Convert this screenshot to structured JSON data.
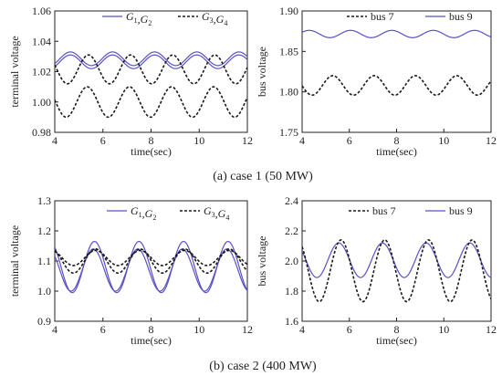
{
  "colors": {
    "blue": "#5a52c6",
    "black": "#1a1a1a"
  },
  "captions": [
    "(a) case 1 (50 MW)",
    "(b) case 2 (400 MW)"
  ],
  "chart_data": [
    {
      "type": "line",
      "panel": "a-left",
      "ylabel": "terminal voltage",
      "xlabel": "time(sec)",
      "xlim": [
        4,
        12
      ],
      "ylim": [
        0.98,
        1.06
      ],
      "xticks": [
        "4",
        "6",
        "8",
        "10",
        "12"
      ],
      "yticks": [
        "0.98",
        "1.00",
        "1.02",
        "1.04",
        "1.06"
      ],
      "legend": [
        {
          "base": "G",
          "subs": [
            "1",
            "2"
          ],
          "style": "solid",
          "color": "#5a52c6"
        },
        {
          "base": "G",
          "subs": [
            "3",
            "4"
          ],
          "style": "dashed",
          "color": "#1a1a1a"
        }
      ],
      "series": [
        {
          "style": "solid",
          "color": "#5a52c6",
          "mean": 1.0285,
          "amp": 0.0045,
          "period": 1.75,
          "phase_x": 4.65
        },
        {
          "style": "solid",
          "color": "#5a52c6",
          "mean": 1.0265,
          "amp": 0.0045,
          "period": 1.75,
          "phase_x": 4.65
        },
        {
          "style": "dashed",
          "color": "#1a1a1a",
          "mean": 1.0215,
          "amp": 0.0095,
          "period": 1.75,
          "phase_x": 5.4
        },
        {
          "style": "dashed",
          "color": "#1a1a1a",
          "mean": 1.0,
          "amp": 0.01,
          "period": 1.75,
          "phase_x": 5.35
        }
      ]
    },
    {
      "type": "line",
      "panel": "a-right",
      "ylabel": "bus voltage",
      "xlabel": "time(sec)",
      "xlim": [
        4,
        12
      ],
      "ylim": [
        1.75,
        1.9
      ],
      "xticks": [
        "4",
        "6",
        "8",
        "10",
        "12"
      ],
      "yticks": [
        "1.75",
        "1.80",
        "1.85",
        "1.90"
      ],
      "legend": [
        {
          "text": "bus 7",
          "style": "dashed",
          "color": "#1a1a1a"
        },
        {
          "text": "bus 9",
          "style": "solid",
          "color": "#5a52c6"
        }
      ],
      "series": [
        {
          "style": "solid",
          "color": "#5a52c6",
          "mean": 1.8715,
          "amp": 0.0045,
          "period": 1.75,
          "phase_x": 4.3
        },
        {
          "style": "dashed",
          "color": "#1a1a1a",
          "mean": 1.808,
          "amp": 0.012,
          "period": 1.75,
          "phase_x": 5.3
        }
      ]
    },
    {
      "type": "line",
      "panel": "b-left",
      "ylabel": "terminal voltage",
      "xlabel": "time(sec)",
      "xlim": [
        4,
        12
      ],
      "ylim": [
        0.9,
        1.3
      ],
      "xticks": [
        "4",
        "6",
        "8",
        "10",
        "12"
      ],
      "yticks": [
        "0.9",
        "1.0",
        "1.1",
        "1.2",
        "1.3"
      ],
      "legend": [
        {
          "base": "G",
          "subs": [
            "1",
            "2"
          ],
          "style": "solid",
          "color": "#5a52c6"
        },
        {
          "base": "G",
          "subs": [
            "3",
            "4"
          ],
          "style": "dashed",
          "color": "#1a1a1a"
        }
      ],
      "series": [
        {
          "style": "solid",
          "color": "#5a52c6",
          "mean": 1.08,
          "amp": 0.085,
          "period": 1.85,
          "phase_x": 5.65
        },
        {
          "style": "solid",
          "color": "#5a52c6",
          "mean": 1.07,
          "amp": 0.07,
          "period": 1.85,
          "phase_x": 5.6
        },
        {
          "style": "dashed",
          "color": "#1a1a1a",
          "mean": 1.1,
          "amp": 0.04,
          "period": 1.85,
          "phase_x": 5.7
        },
        {
          "style": "dashed",
          "color": "#1a1a1a",
          "mean": 1.11,
          "amp": 0.025,
          "period": 1.85,
          "phase_x": 5.7
        }
      ]
    },
    {
      "type": "line",
      "panel": "b-right",
      "ylabel": "bus voltage",
      "xlabel": "time(sec)",
      "xlim": [
        4,
        12
      ],
      "ylim": [
        1.6,
        2.4
      ],
      "xticks": [
        "4",
        "6",
        "8",
        "10",
        "12"
      ],
      "yticks": [
        "1.6",
        "1.8",
        "2.0",
        "2.2",
        "2.4"
      ],
      "legend": [
        {
          "text": "bus 7",
          "style": "dashed",
          "color": "#1a1a1a"
        },
        {
          "text": "bus 9",
          "style": "solid",
          "color": "#5a52c6"
        }
      ],
      "series": [
        {
          "style": "solid",
          "color": "#5a52c6",
          "mean": 2.005,
          "amp": 0.115,
          "period": 1.85,
          "phase_x": 5.55
        },
        {
          "style": "dashed",
          "color": "#1a1a1a",
          "mean": 1.935,
          "amp": 0.205,
          "period": 1.85,
          "phase_x": 5.65
        }
      ]
    }
  ]
}
